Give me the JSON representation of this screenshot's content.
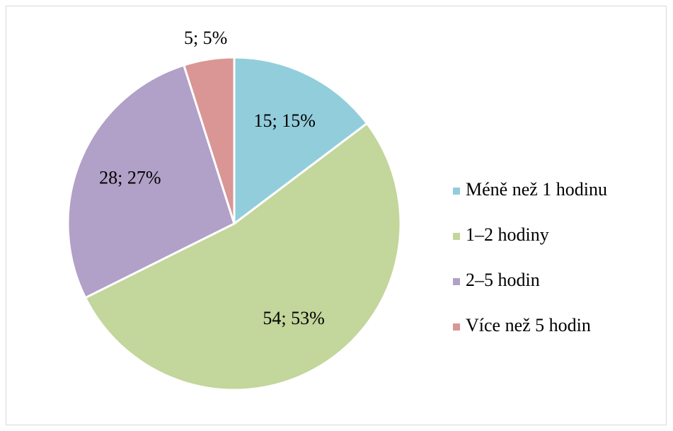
{
  "chart_data": {
    "type": "pie",
    "categories": [
      "Méně než 1 hodinu",
      "1–2 hodiny",
      "2–5 hodin",
      "Více než 5 hodin"
    ],
    "values": [
      15,
      54,
      28,
      5
    ],
    "value_labels": [
      "15; 15%",
      "54; 53%",
      "28; 27%",
      "5; 5%"
    ],
    "colors": [
      "#92cddc",
      "#c3d69b",
      "#b1a0c7",
      "#d99694"
    ],
    "legend": "right"
  }
}
